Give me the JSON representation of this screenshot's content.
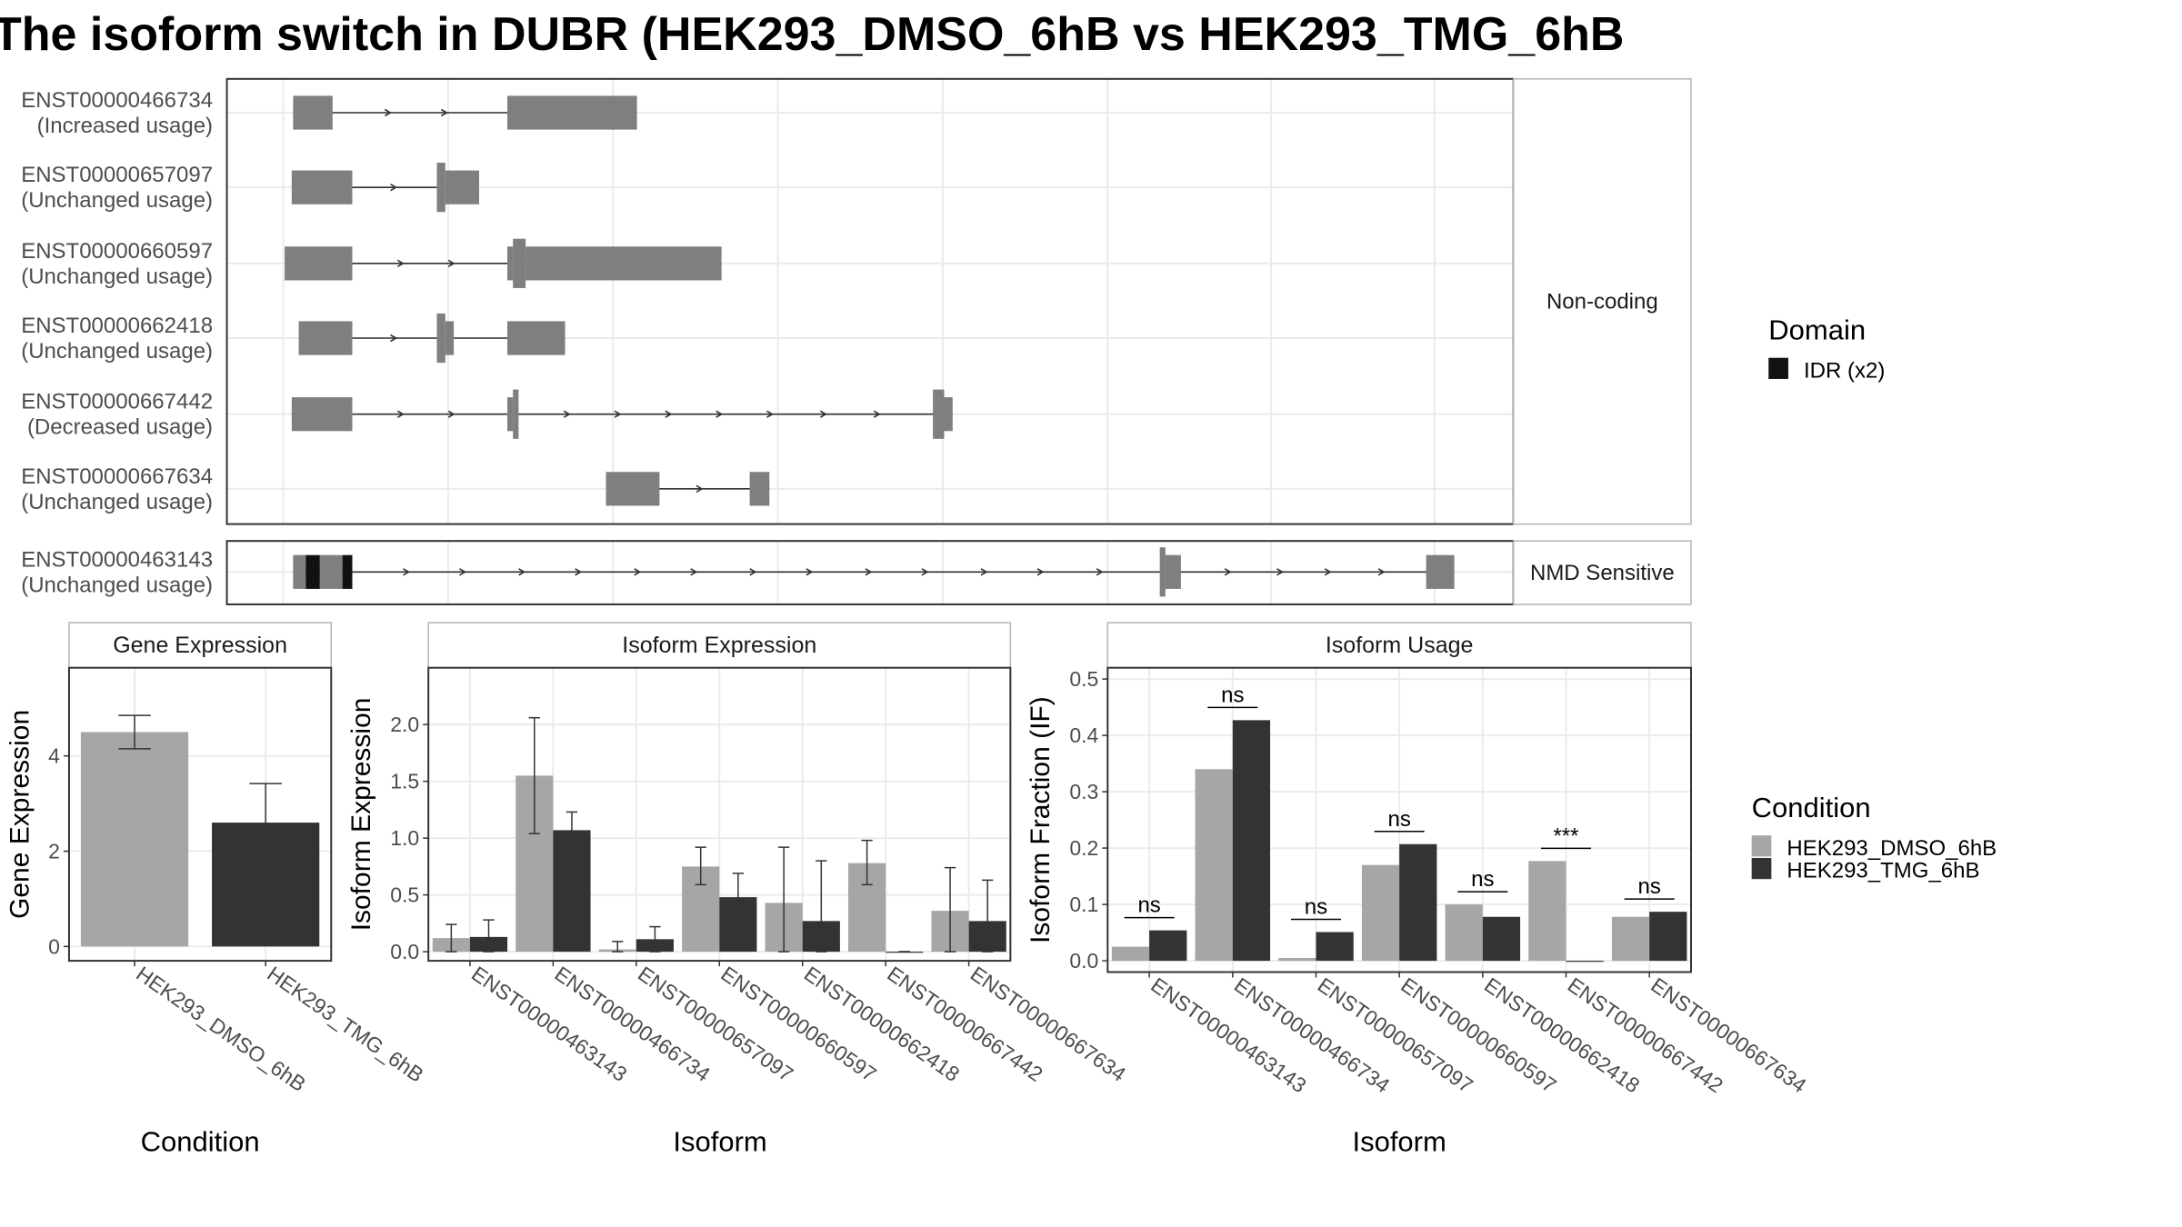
{
  "title": "The isoform switch in DUBR (HEK293_DMSO_6hB vs HEK293_TMG_6hB",
  "colors": {
    "exon": "#7f7f7f",
    "idr": "#111111",
    "dmso": "#a6a6a6",
    "tmg": "#333333",
    "grid": "#ebebeb",
    "panel_border": "#333333",
    "strip_border": "#b3b3b3"
  },
  "structure": {
    "groups": [
      {
        "label": "Non-coding",
        "transcripts": [
          {
            "id": "ENST00000466734",
            "usage": "(Increased usage)",
            "exons": [
              [
                208,
                236,
                "n"
              ],
              [
                360,
                452,
                "n"
              ]
            ],
            "arrows": [
              277,
              317
            ]
          },
          {
            "id": "ENST00000657097",
            "usage": "(Unchanged usage)",
            "exons": [
              [
                207,
                250,
                "n"
              ],
              [
                310,
                316,
                "t"
              ],
              [
                316,
                340,
                "n"
              ]
            ],
            "arrows": [
              281
            ]
          },
          {
            "id": "ENST00000660597",
            "usage": "(Unchanged usage)",
            "exons": [
              [
                202,
                250,
                "n"
              ],
              [
                360,
                364,
                "n"
              ],
              [
                364,
                373,
                "t"
              ],
              [
                373,
                512,
                "n"
              ]
            ],
            "arrows": [
              286,
              322
            ]
          },
          {
            "id": "ENST00000662418",
            "usage": "(Unchanged usage)",
            "exons": [
              [
                212,
                250,
                "n"
              ],
              [
                310,
                316,
                "t"
              ],
              [
                316,
                322,
                "n"
              ],
              [
                360,
                401,
                "n"
              ]
            ],
            "arrows": [
              281
            ]
          },
          {
            "id": "ENST00000667442",
            "usage": "(Decreased usage)",
            "exons": [
              [
                207,
                250,
                "n"
              ],
              [
                360,
                364,
                "n"
              ],
              [
                364,
                368,
                "t"
              ],
              [
                662,
                670,
                "t"
              ],
              [
                670,
                676,
                "n"
              ]
            ],
            "arrows": [
              286,
              322,
              404,
              440,
              476,
              512,
              548,
              586,
              624
            ]
          },
          {
            "id": "ENST00000667634",
            "usage": "(Unchanged usage)",
            "exons": [
              [
                430,
                468,
                "n"
              ],
              [
                532,
                546,
                "n"
              ]
            ],
            "arrows": [
              498
            ]
          }
        ]
      },
      {
        "label": "NMD Sensitive",
        "transcripts": [
          {
            "id": "ENST00000463143",
            "usage": "(Unchanged usage)",
            "exons": [
              [
                208,
                217,
                "n"
              ],
              [
                217,
                227,
                "i"
              ],
              [
                227,
                243,
                "n"
              ],
              [
                243,
                250,
                "i"
              ],
              [
                823,
                827,
                "t"
              ],
              [
                827,
                838,
                "n"
              ],
              [
                1012,
                1032,
                "n"
              ]
            ],
            "arrows": [
              290,
              330,
              372,
              412,
              454,
              494,
              536,
              576,
              618,
              658,
              700,
              740,
              782,
              873,
              910,
              944,
              982
            ]
          }
        ]
      }
    ]
  },
  "legend_domain": {
    "title": "Domain",
    "items": [
      {
        "label": "IDR (x2)",
        "color": "#111111"
      }
    ]
  },
  "legend_condition": {
    "title": "Condition",
    "items": [
      {
        "label": "HEK293_DMSO_6hB",
        "color": "#a6a6a6"
      },
      {
        "label": "HEK293_TMG_6hB",
        "color": "#333333"
      }
    ]
  },
  "chart_data": [
    {
      "type": "bar",
      "title": "Gene Expression",
      "xlabel": "Condition",
      "ylabel": "Gene Expression",
      "categories": [
        "HEK293_DMSO_6hB",
        "HEK293_TMG_6hB"
      ],
      "values": [
        4.5,
        2.6
      ],
      "error": [
        [
          4.15,
          4.85
        ],
        [
          1.78,
          3.42
        ]
      ],
      "ylim": [
        -0.3,
        5.85
      ],
      "yticks": [
        0,
        2,
        4
      ],
      "grid": true
    },
    {
      "type": "bar",
      "title": "Isoform Expression",
      "xlabel": "Isoform",
      "ylabel": "Isoform Expression",
      "categories": [
        "ENST00000463143",
        "ENST00000466734",
        "ENST00000657097",
        "ENST00000660597",
        "ENST00000662418",
        "ENST00000667442",
        "ENST00000667634"
      ],
      "series": [
        {
          "name": "HEK293_DMSO_6hB",
          "values": [
            0.12,
            1.55,
            0.02,
            0.75,
            0.43,
            0.78,
            0.36
          ],
          "error": [
            [
              0.0,
              0.24
            ],
            [
              1.04,
              2.06
            ],
            [
              0.0,
              0.09
            ],
            [
              0.59,
              0.92
            ],
            [
              0.0,
              0.92
            ],
            [
              0.59,
              0.98
            ],
            [
              0.0,
              0.74
            ]
          ]
        },
        {
          "name": "HEK293_TMG_6hB",
          "values": [
            0.13,
            1.07,
            0.11,
            0.48,
            0.27,
            0.0,
            0.27
          ],
          "error": [
            [
              0.0,
              0.28
            ],
            [
              0.92,
              1.23
            ],
            [
              0.0,
              0.22
            ],
            [
              0.27,
              0.69
            ],
            [
              0.0,
              0.8
            ],
            [
              0.0,
              0.0
            ],
            [
              0.0,
              0.63
            ]
          ]
        }
      ],
      "ylim": [
        -0.08,
        2.5
      ],
      "yticks": [
        "0.0",
        "0.5",
        "1.0",
        "1.5",
        "2.0"
      ],
      "grid": true
    },
    {
      "type": "bar",
      "title": "Isoform Usage",
      "xlabel": "Isoform",
      "ylabel": "Isoform Fraction (IF)",
      "categories": [
        "ENST00000463143",
        "ENST00000466734",
        "ENST00000657097",
        "ENST00000660597",
        "ENST00000662418",
        "ENST00000667442",
        "ENST00000667634"
      ],
      "series": [
        {
          "name": "HEK293_DMSO_6hB",
          "values": [
            0.025,
            0.34,
            0.005,
            0.17,
            0.1,
            0.177,
            0.078
          ]
        },
        {
          "name": "HEK293_TMG_6hB",
          "values": [
            0.054,
            0.427,
            0.051,
            0.207,
            0.078,
            0.0,
            0.087
          ]
        }
      ],
      "significance": [
        "ns",
        "ns",
        "ns",
        "ns",
        "ns",
        "***",
        "ns"
      ],
      "ylim": [
        -0.02,
        0.52
      ],
      "yticks": [
        "0.0",
        "0.1",
        "0.2",
        "0.3",
        "0.4",
        "0.5"
      ],
      "grid": true
    }
  ]
}
